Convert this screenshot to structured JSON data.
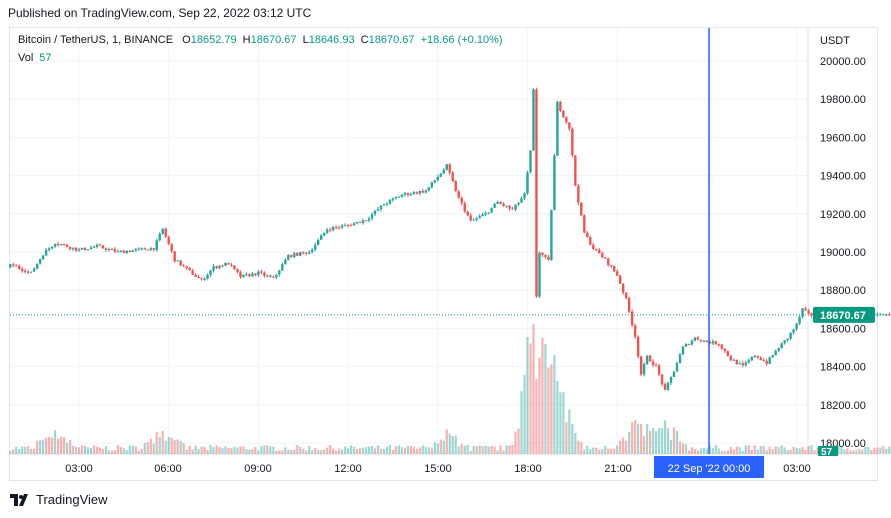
{
  "publisher": "Published on TradingView.com, Sep 22, 2022 03:12 UTC",
  "legend": {
    "symbol": "Bitcoin / TetherUS, 1, BINANCE",
    "o_label": "O",
    "o": "18652.79",
    "h_label": "H",
    "h": "18670.67",
    "l_label": "L",
    "l": "18646.93",
    "c_label": "C",
    "c": "18670.67",
    "change": "+18.66 (+0.10%)",
    "vol_label": "Vol",
    "vol": "57"
  },
  "brand": "TradingView",
  "colors": {
    "up": "#26a69a",
    "down": "#ef5350",
    "crosshair": "#2962ff",
    "price_badge": "#089981"
  },
  "chart_data": {
    "type": "candlestick",
    "currency_label": "USDT",
    "y_ticks": [
      "20000.00",
      "19800.00",
      "19600.00",
      "19400.00",
      "19200.00",
      "19000.00",
      "18800.00",
      "18600.00",
      "18400.00",
      "18200.00",
      "18000.00"
    ],
    "ylim": [
      18000,
      20000
    ],
    "x_ticks": [
      "03:00",
      "06:00",
      "09:00",
      "12:00",
      "15:00",
      "18:00",
      "21:00",
      "03:00"
    ],
    "crosshair_time_label": "22 Sep '22   00:00",
    "last_price_label": "18670.67",
    "volume_label": "57",
    "close_series": [
      {
        "t": 0.0,
        "v": 18920
      },
      {
        "t": 0.8,
        "v": 18930
      },
      {
        "t": 1.4,
        "v": 18890
      },
      {
        "t": 1.8,
        "v": 18990
      },
      {
        "t": 2.2,
        "v": 19050
      },
      {
        "t": 3.0,
        "v": 19010
      },
      {
        "t": 3.6,
        "v": 19030
      },
      {
        "t": 4.3,
        "v": 19000
      },
      {
        "t": 4.9,
        "v": 19010
      },
      {
        "t": 5.5,
        "v": 19020
      },
      {
        "t": 5.8,
        "v": 19120
      },
      {
        "t": 6.2,
        "v": 18960
      },
      {
        "t": 6.6,
        "v": 18910
      },
      {
        "t": 7.1,
        "v": 18850
      },
      {
        "t": 7.5,
        "v": 18920
      },
      {
        "t": 8.0,
        "v": 18940
      },
      {
        "t": 8.4,
        "v": 18870
      },
      {
        "t": 9.0,
        "v": 18890
      },
      {
        "t": 9.5,
        "v": 18860
      },
      {
        "t": 10.0,
        "v": 18980
      },
      {
        "t": 10.7,
        "v": 19000
      },
      {
        "t": 11.3,
        "v": 19120
      },
      {
        "t": 12.0,
        "v": 19140
      },
      {
        "t": 12.6,
        "v": 19170
      },
      {
        "t": 13.2,
        "v": 19250
      },
      {
        "t": 13.8,
        "v": 19300
      },
      {
        "t": 14.6,
        "v": 19320
      },
      {
        "t": 15.3,
        "v": 19450
      },
      {
        "t": 15.7,
        "v": 19280
      },
      {
        "t": 16.1,
        "v": 19160
      },
      {
        "t": 16.6,
        "v": 19200
      },
      {
        "t": 17.0,
        "v": 19260
      },
      {
        "t": 17.5,
        "v": 19220
      },
      {
        "t": 17.9,
        "v": 19300
      },
      {
        "t": 18.15,
        "v": 19580
      },
      {
        "t": 18.22,
        "v": 19950
      },
      {
        "t": 18.27,
        "v": 18700
      },
      {
        "t": 18.4,
        "v": 19000
      },
      {
        "t": 18.7,
        "v": 18950
      },
      {
        "t": 18.9,
        "v": 19500
      },
      {
        "t": 19.0,
        "v": 19780
      },
      {
        "t": 19.4,
        "v": 19650
      },
      {
        "t": 19.6,
        "v": 19350
      },
      {
        "t": 19.9,
        "v": 19100
      },
      {
        "t": 20.2,
        "v": 19020
      },
      {
        "t": 20.6,
        "v": 18960
      },
      {
        "t": 21.0,
        "v": 18880
      },
      {
        "t": 21.3,
        "v": 18750
      },
      {
        "t": 21.6,
        "v": 18560
      },
      {
        "t": 21.8,
        "v": 18360
      },
      {
        "t": 22.0,
        "v": 18450
      },
      {
        "t": 22.3,
        "v": 18400
      },
      {
        "t": 22.6,
        "v": 18270
      },
      {
        "t": 22.9,
        "v": 18380
      },
      {
        "t": 23.2,
        "v": 18500
      },
      {
        "t": 23.6,
        "v": 18550
      },
      {
        "t": 24.0,
        "v": 18530
      },
      {
        "t": 24.4,
        "v": 18520
      },
      {
        "t": 24.8,
        "v": 18440
      },
      {
        "t": 25.2,
        "v": 18400
      },
      {
        "t": 25.6,
        "v": 18460
      },
      {
        "t": 26.0,
        "v": 18420
      },
      {
        "t": 26.4,
        "v": 18500
      },
      {
        "t": 26.7,
        "v": 18550
      },
      {
        "t": 27.0,
        "v": 18620
      },
      {
        "t": 27.2,
        "v": 18700
      },
      {
        "t": 27.4,
        "v": 18671
      }
    ],
    "volume_bursts": [
      {
        "t": 18.2,
        "v": 10
      },
      {
        "t": 18.3,
        "v": 6
      },
      {
        "t": 18.9,
        "v": 5
      },
      {
        "t": 19.1,
        "v": 4
      },
      {
        "t": 21.6,
        "v": 3
      },
      {
        "t": 22.6,
        "v": 3
      },
      {
        "t": 2.2,
        "v": 2
      },
      {
        "t": 5.8,
        "v": 2
      },
      {
        "t": 15.3,
        "v": 2
      }
    ]
  }
}
